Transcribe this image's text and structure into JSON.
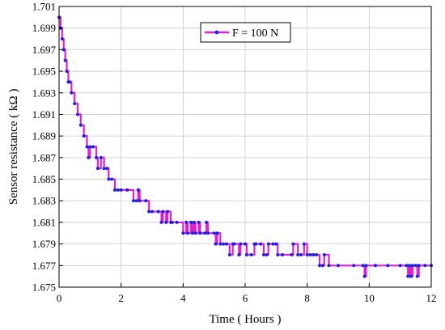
{
  "chart_data": {
    "type": "line",
    "title": "",
    "xlabel": "Time ( Hours )",
    "ylabel": "Sensor resistance ( kΩ )",
    "xlim": [
      0,
      12
    ],
    "ylim": [
      1.675,
      1.701
    ],
    "xticks": [
      "0",
      "2",
      "4",
      "6",
      "8",
      "10",
      "12"
    ],
    "yticks": [
      "1.675",
      "1.677",
      "1.679",
      "1.681",
      "1.683",
      "1.685",
      "1.687",
      "1.689",
      "1.691",
      "1.693",
      "1.695",
      "1.697",
      "1.699",
      "1.701"
    ],
    "grid": true,
    "legend_position": "top-center",
    "series": [
      {
        "name": "F = 100 N",
        "line_color": "#e020d0",
        "marker_color": "#2020e0",
        "x": [
          0,
          0.05,
          0.1,
          0.15,
          0.2,
          0.25,
          0.3,
          0.35,
          0.4,
          0.5,
          0.6,
          0.7,
          0.8,
          0.9,
          0.95,
          1.0,
          1.1,
          1.2,
          1.25,
          1.35,
          1.45,
          1.55,
          1.6,
          1.7,
          1.8,
          1.9,
          2.0,
          2.2,
          2.4,
          2.5,
          2.55,
          2.6,
          2.8,
          2.9,
          3.0,
          3.2,
          3.3,
          3.35,
          3.45,
          3.5,
          3.6,
          3.65,
          3.8,
          4.0,
          4.1,
          4.15,
          4.25,
          4.3,
          4.35,
          4.4,
          4.5,
          4.55,
          4.7,
          4.75,
          4.8,
          5.0,
          5.05,
          5.1,
          5.2,
          5.3,
          5.4,
          5.5,
          5.6,
          5.65,
          5.8,
          5.85,
          6.0,
          6.05,
          6.2,
          6.3,
          6.35,
          6.5,
          6.6,
          6.7,
          6.75,
          6.9,
          7.0,
          7.05,
          7.2,
          7.5,
          7.55,
          7.7,
          7.8,
          7.9,
          8.0,
          8.1,
          8.2,
          8.3,
          8.4,
          8.5,
          8.55,
          8.7,
          9.0,
          9.5,
          9.8,
          9.85,
          9.9,
          10.2,
          10.6,
          11.0,
          11.2,
          11.25,
          11.3,
          11.35,
          11.4,
          11.5,
          11.55,
          11.6,
          11.8,
          12.0
        ],
        "y": [
          1.7,
          1.699,
          1.698,
          1.697,
          1.696,
          1.695,
          1.694,
          1.694,
          1.693,
          1.692,
          1.691,
          1.69,
          1.689,
          1.688,
          1.687,
          1.688,
          1.688,
          1.687,
          1.686,
          1.687,
          1.686,
          1.686,
          1.685,
          1.685,
          1.684,
          1.684,
          1.684,
          1.684,
          1.683,
          1.683,
          1.684,
          1.683,
          1.683,
          1.682,
          1.682,
          1.682,
          1.681,
          1.682,
          1.681,
          1.682,
          1.681,
          1.681,
          1.681,
          1.68,
          1.681,
          1.68,
          1.681,
          1.68,
          1.681,
          1.68,
          1.681,
          1.68,
          1.68,
          1.681,
          1.68,
          1.68,
          1.679,
          1.68,
          1.679,
          1.679,
          1.679,
          1.678,
          1.679,
          1.679,
          1.678,
          1.679,
          1.679,
          1.678,
          1.678,
          1.679,
          1.679,
          1.679,
          1.678,
          1.678,
          1.679,
          1.679,
          1.679,
          1.678,
          1.678,
          1.678,
          1.679,
          1.678,
          1.678,
          1.679,
          1.678,
          1.678,
          1.678,
          1.678,
          1.677,
          1.677,
          1.678,
          1.677,
          1.677,
          1.677,
          1.677,
          1.676,
          1.677,
          1.677,
          1.677,
          1.677,
          1.677,
          1.676,
          1.677,
          1.676,
          1.677,
          1.677,
          1.676,
          1.677,
          1.677,
          1.677
        ]
      }
    ]
  }
}
